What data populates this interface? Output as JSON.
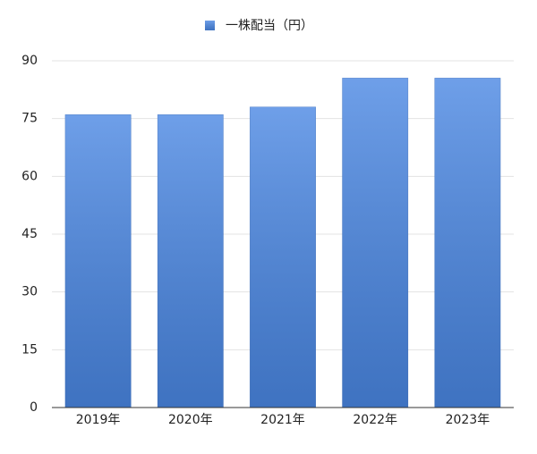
{
  "chart_data": {
    "type": "bar",
    "categories": [
      "2019年",
      "2020年",
      "2021年",
      "2022年",
      "2023年"
    ],
    "series": [
      {
        "name": "一株配当（円）",
        "color": "#4a87e3",
        "values": [
          76,
          76,
          78,
          85.5,
          85.5
        ]
      }
    ],
    "ylim": [
      0,
      90
    ],
    "yticks": [
      0,
      15,
      30,
      45,
      60,
      75,
      90
    ],
    "grid": true
  }
}
